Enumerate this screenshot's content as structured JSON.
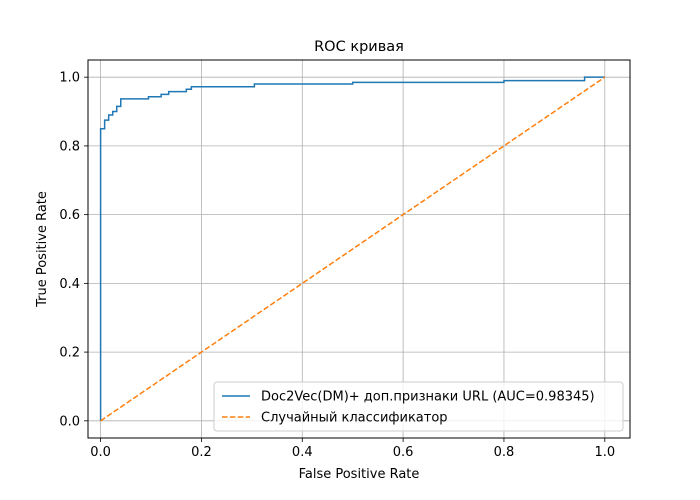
{
  "chart_data": {
    "type": "line",
    "title": "ROC кривая",
    "xlabel": "False Positive Rate",
    "ylabel": "True Positive Rate",
    "xlim": [
      -0.025,
      1.05
    ],
    "ylim": [
      -0.05,
      1.05
    ],
    "xticks": [
      0.0,
      0.2,
      0.4,
      0.6,
      0.8,
      1.0
    ],
    "yticks": [
      0.0,
      0.2,
      0.4,
      0.6,
      0.8,
      1.0
    ],
    "xtick_labels": [
      "0.0",
      "0.2",
      "0.4",
      "0.6",
      "0.8",
      "1.0"
    ],
    "ytick_labels": [
      "0.0",
      "0.2",
      "0.4",
      "0.6",
      "0.8",
      "1.0"
    ],
    "grid": true,
    "legend_position": "lower-right",
    "series": [
      {
        "name": "Doc2Vec(DM)+ доп.признаки URL (AUC=0.98345)",
        "color": "#1f77b4",
        "style": "steps",
        "x": [
          0.0,
          0.0,
          0.008,
          0.008,
          0.016,
          0.016,
          0.024,
          0.024,
          0.032,
          0.032,
          0.04,
          0.04,
          0.095,
          0.095,
          0.12,
          0.12,
          0.135,
          0.135,
          0.17,
          0.17,
          0.18,
          0.18,
          0.305,
          0.305,
          0.5,
          0.5,
          0.8,
          0.8,
          0.96,
          0.96,
          1.0
        ],
        "y": [
          0.0,
          0.85,
          0.85,
          0.875,
          0.875,
          0.89,
          0.89,
          0.9,
          0.9,
          0.915,
          0.915,
          0.937,
          0.937,
          0.943,
          0.943,
          0.95,
          0.95,
          0.958,
          0.958,
          0.965,
          0.965,
          0.972,
          0.972,
          0.98,
          0.98,
          0.985,
          0.985,
          0.99,
          0.99,
          1.0,
          1.0
        ]
      },
      {
        "name": "Случайный классификатор",
        "color": "#ff7f0e",
        "style": "dashed",
        "x": [
          0.0,
          1.0
        ],
        "y": [
          0.0,
          1.0
        ]
      }
    ]
  }
}
